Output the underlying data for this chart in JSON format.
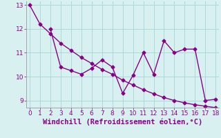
{
  "line1_x": [
    0,
    1,
    2,
    3,
    4,
    5,
    6,
    7,
    8,
    9,
    10,
    11,
    12,
    13,
    14,
    15,
    16,
    17,
    18
  ],
  "line1_y": [
    13.0,
    12.2,
    11.8,
    11.4,
    11.1,
    10.8,
    10.55,
    10.3,
    10.1,
    9.85,
    9.65,
    9.45,
    9.28,
    9.12,
    9.0,
    8.9,
    8.82,
    8.76,
    8.7
  ],
  "line2_x": [
    2,
    3,
    4,
    5,
    6,
    7,
    8,
    9,
    10,
    11,
    12,
    13,
    14,
    15,
    16,
    17,
    18
  ],
  "line2_y": [
    12.0,
    10.4,
    10.25,
    10.1,
    10.35,
    10.7,
    10.4,
    9.3,
    10.05,
    11.0,
    10.1,
    11.5,
    11.0,
    11.15,
    11.15,
    9.0,
    9.05
  ],
  "color": "#880088",
  "bg_color": "#d8f0f0",
  "grid_color": "#aadada",
  "xlabel": "Windchill (Refroidissement éolien,°C)",
  "ylim": [
    8.7,
    13.15
  ],
  "xlim": [
    -0.3,
    18.3
  ],
  "yticks": [
    9,
    10,
    11,
    12,
    13
  ],
  "xticks": [
    0,
    1,
    2,
    3,
    4,
    5,
    6,
    7,
    8,
    9,
    10,
    11,
    12,
    13,
    14,
    15,
    16,
    17,
    18
  ],
  "marker": "D",
  "markersize": 2.5,
  "linewidth": 1.0,
  "xlabel_fontsize": 7.5
}
